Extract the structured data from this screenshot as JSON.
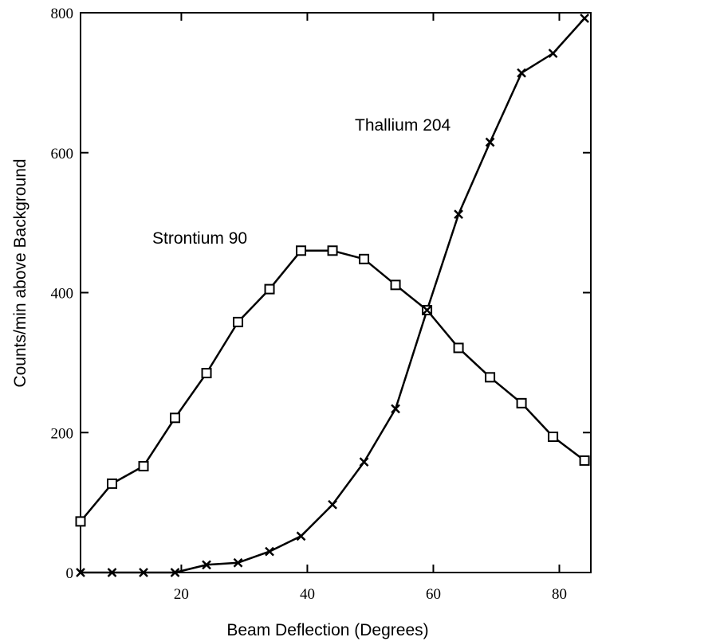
{
  "chart_data": {
    "type": "line",
    "title": "",
    "xlabel": "Beam Deflection (Degrees)",
    "ylabel": "Counts/min above Background",
    "xlim": [
      4,
      85
    ],
    "ylim": [
      0,
      800
    ],
    "xticks": [
      20,
      40,
      60,
      80
    ],
    "yticks": [
      0,
      200,
      400,
      600,
      800
    ],
    "grid": false,
    "series": [
      {
        "name": "Strontium 90",
        "marker": "square",
        "x": [
          4,
          9,
          14,
          19,
          24,
          29,
          34,
          39,
          44,
          49,
          54,
          59,
          64,
          69,
          74,
          79,
          84
        ],
        "y": [
          73,
          127,
          152,
          221,
          285,
          358,
          405,
          460,
          460,
          448,
          411,
          375,
          321,
          279,
          242,
          194,
          160
        ]
      },
      {
        "name": "Thallium 204",
        "marker": "x",
        "x": [
          4,
          9,
          14,
          19,
          24,
          29,
          34,
          39,
          44,
          49,
          54,
          59,
          64,
          69,
          74,
          79,
          84
        ],
        "y": [
          0,
          0,
          0,
          0,
          11,
          14,
          30,
          52,
          97,
          158,
          234,
          375,
          512,
          615,
          714,
          742,
          792
        ]
      }
    ]
  }
}
